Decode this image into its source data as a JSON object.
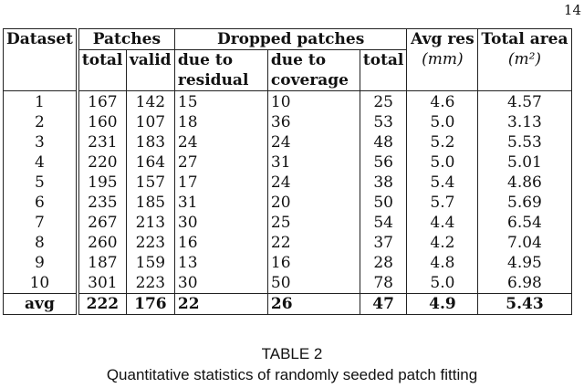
{
  "page_number": "14",
  "table": {
    "headers": {
      "dataset": "Dataset",
      "patches": "Patches",
      "dropped": "Dropped patches",
      "avg_res": "Avg res",
      "avg_res_unit": "(mm)",
      "total_area": "Total area",
      "total_area_unit": "(m²)",
      "patches_total": "total",
      "patches_valid": "valid",
      "due_residual_1": "due to",
      "due_residual_2": "residual",
      "due_coverage_1": "due to",
      "due_coverage_2": "coverage",
      "dropped_total": "total"
    },
    "rows": [
      {
        "dataset": "1",
        "total": "167",
        "valid": "142",
        "residual": "15",
        "coverage": "10",
        "dropped_total": "25",
        "avg_res": "4.6",
        "area": "4.57"
      },
      {
        "dataset": "2",
        "total": "160",
        "valid": "107",
        "residual": "18",
        "coverage": "36",
        "dropped_total": "53",
        "avg_res": "5.0",
        "area": "3.13"
      },
      {
        "dataset": "3",
        "total": "231",
        "valid": "183",
        "residual": "24",
        "coverage": "24",
        "dropped_total": "48",
        "avg_res": "5.2",
        "area": "5.53"
      },
      {
        "dataset": "4",
        "total": "220",
        "valid": "164",
        "residual": "27",
        "coverage": "31",
        "dropped_total": "56",
        "avg_res": "5.0",
        "area": "5.01"
      },
      {
        "dataset": "5",
        "total": "195",
        "valid": "157",
        "residual": "17",
        "coverage": "24",
        "dropped_total": "38",
        "avg_res": "5.4",
        "area": "4.86"
      },
      {
        "dataset": "6",
        "total": "235",
        "valid": "185",
        "residual": "31",
        "coverage": "20",
        "dropped_total": "50",
        "avg_res": "5.7",
        "area": "5.69"
      },
      {
        "dataset": "7",
        "total": "267",
        "valid": "213",
        "residual": "30",
        "coverage": "25",
        "dropped_total": "54",
        "avg_res": "4.4",
        "area": "6.54"
      },
      {
        "dataset": "8",
        "total": "260",
        "valid": "223",
        "residual": "16",
        "coverage": "22",
        "dropped_total": "37",
        "avg_res": "4.2",
        "area": "7.04"
      },
      {
        "dataset": "9",
        "total": "187",
        "valid": "159",
        "residual": "13",
        "coverage": "16",
        "dropped_total": "28",
        "avg_res": "4.8",
        "area": "4.95"
      },
      {
        "dataset": "10",
        "total": "301",
        "valid": "223",
        "residual": "30",
        "coverage": "50",
        "dropped_total": "78",
        "avg_res": "5.0",
        "area": "6.98"
      }
    ],
    "avg": {
      "dataset": "avg",
      "total": "222",
      "valid": "176",
      "residual": "22",
      "coverage": "26",
      "dropped_total": "47",
      "avg_res": "4.9",
      "area": "5.43"
    }
  },
  "caption": {
    "label": "TABLE 2",
    "text": "Quantitative statistics of randomly seeded patch fitting"
  }
}
